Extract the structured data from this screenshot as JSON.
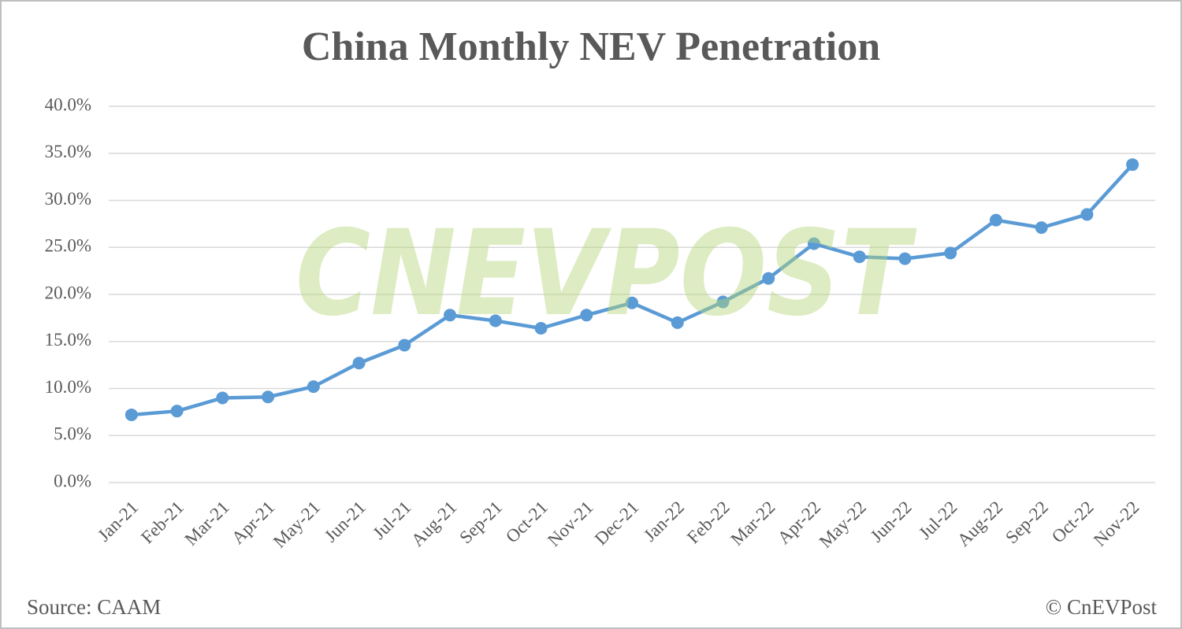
{
  "chart_data": {
    "type": "line",
    "title": "China Monthly NEV Penetration",
    "categories": [
      "Jan-21",
      "Feb-21",
      "Mar-21",
      "Apr-21",
      "May-21",
      "Jun-21",
      "Jul-21",
      "Aug-21",
      "Sep-21",
      "Oct-21",
      "Nov-21",
      "Dec-21",
      "Jan-22",
      "Feb-22",
      "Mar-22",
      "Apr-22",
      "May-22",
      "Jun-22",
      "Jul-22",
      "Aug-22",
      "Sep-22",
      "Oct-22",
      "Nov-22"
    ],
    "values": [
      7.2,
      7.6,
      9.0,
      9.1,
      10.2,
      12.7,
      14.6,
      17.8,
      17.2,
      16.4,
      17.8,
      19.1,
      17.0,
      19.2,
      21.7,
      25.4,
      24.0,
      23.8,
      24.4,
      27.9,
      27.1,
      28.5,
      33.8
    ],
    "color": "#5b9bd5",
    "ylim": [
      0,
      40
    ],
    "yticks": [
      {
        "value": 0,
        "label": "0.0%"
      },
      {
        "value": 5,
        "label": "5.0%"
      },
      {
        "value": 10,
        "label": "10.0%"
      },
      {
        "value": 15,
        "label": "15.0%"
      },
      {
        "value": 20,
        "label": "20.0%"
      },
      {
        "value": 25,
        "label": "25.0%"
      },
      {
        "value": 30,
        "label": "30.0%"
      },
      {
        "value": 35,
        "label": "35.0%"
      },
      {
        "value": 40,
        "label": "40.0%"
      }
    ],
    "grid": true,
    "source": "Source: CAAM",
    "credit": "© CnEVPost",
    "watermark": "CNEVPOST"
  }
}
